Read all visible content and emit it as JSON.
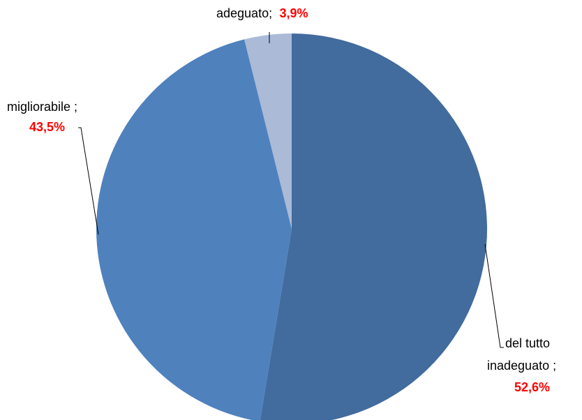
{
  "chart_data": {
    "type": "pie",
    "slices": [
      {
        "category": "del tutto inadeguato",
        "label_lines": [
          "del tutto",
          "inadeguato ;"
        ],
        "value": 52.6,
        "value_label": "52,6%",
        "color": "#426B9E"
      },
      {
        "category": "migliorabile",
        "label_lines": [
          "migliorabile ;"
        ],
        "value": 43.5,
        "value_label": "43,5%",
        "color": "#4F81BD"
      },
      {
        "category": "adeguato",
        "label_lines": [
          "adeguato;"
        ],
        "value": 3.9,
        "value_label": "3,9%",
        "color": "#AABAD7"
      }
    ],
    "start_angle_deg": 0,
    "direction": "clockwise",
    "value_label_color": "#FF0000",
    "legend": "none"
  }
}
